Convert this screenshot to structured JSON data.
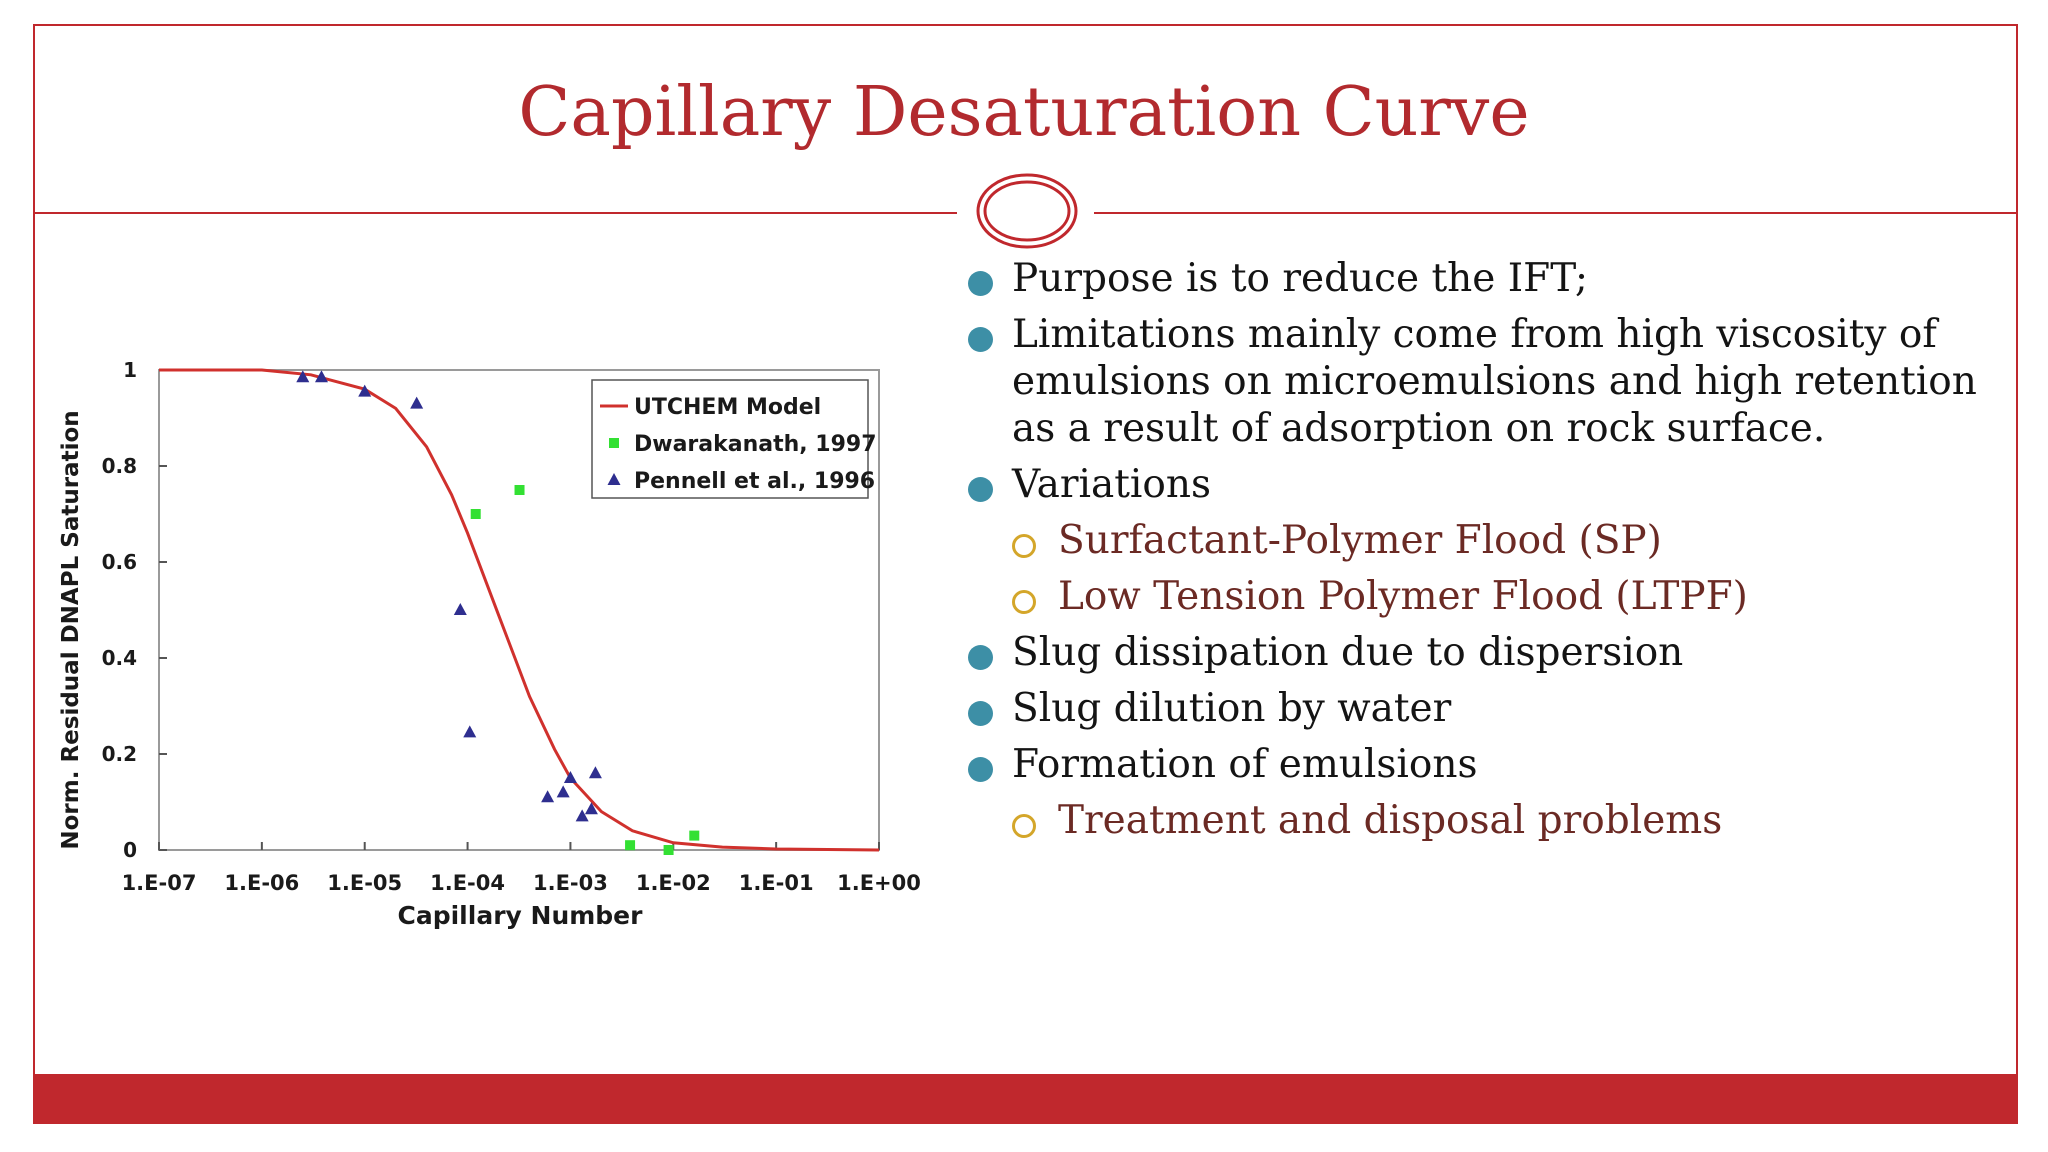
{
  "slide": {
    "title": "Capillary Desaturation Curve",
    "accent_color": "#c0282d",
    "bullet_color": "#3d8fa6",
    "sub_bullet_color": "#d4a62a"
  },
  "bullets": [
    {
      "level": 1,
      "text": "Purpose is to reduce the IFT;"
    },
    {
      "level": 1,
      "text": "Limitations mainly come from high viscosity of emulsions on microemulsions and high retention as a result of adsorption on rock surface."
    },
    {
      "level": 1,
      "text": "Variations"
    },
    {
      "level": 2,
      "text": "Surfactant-Polymer Flood (SP)"
    },
    {
      "level": 2,
      "text": "Low Tension Polymer Flood (LTPF)"
    },
    {
      "level": 1,
      "text": "Slug dissipation due to dispersion"
    },
    {
      "level": 1,
      "text": "Slug dilution by water"
    },
    {
      "level": 1,
      "text": "Formation of emulsions"
    },
    {
      "level": 2,
      "text": "Treatment and disposal problems"
    }
  ],
  "chart_data": {
    "type": "scatter",
    "xlabel": "Capillary Number",
    "ylabel": "Norm. Residual DNAPL Saturation",
    "x_scale": "log",
    "xlim": [
      1e-07,
      1
    ],
    "ylim": [
      0,
      1
    ],
    "x_tick_labels": [
      "1.E-07",
      "1.E-06",
      "1.E-05",
      "1.E-04",
      "1.E-03",
      "1.E-02",
      "1.E-01",
      "1.E+00"
    ],
    "y_tick_labels": [
      "0",
      "0.2",
      "0.4",
      "0.6",
      "0.8",
      "1"
    ],
    "y_ticks": [
      0,
      0.2,
      0.4,
      0.6,
      0.8,
      1
    ],
    "legend_position": "top-right",
    "grid": false,
    "series": [
      {
        "name": "UTCHEM Model",
        "kind": "line",
        "color": "#d0312d",
        "points": [
          [
            1e-07,
            1.0
          ],
          [
            1e-06,
            1.0
          ],
          [
            3e-06,
            0.99
          ],
          [
            1e-05,
            0.96
          ],
          [
            2e-05,
            0.92
          ],
          [
            4e-05,
            0.84
          ],
          [
            7e-05,
            0.74
          ],
          [
            0.0001,
            0.66
          ],
          [
            0.0002,
            0.49
          ],
          [
            0.0004,
            0.32
          ],
          [
            0.0007,
            0.21
          ],
          [
            0.001,
            0.15
          ],
          [
            0.002,
            0.08
          ],
          [
            0.004,
            0.04
          ],
          [
            0.01,
            0.015
          ],
          [
            0.03,
            0.006
          ],
          [
            0.1,
            0.002
          ],
          [
            1.0,
            0.0
          ]
        ]
      },
      {
        "name": "Dwarakanath, 1997",
        "kind": "square",
        "color": "#33e033",
        "points": [
          [
            0.00012,
            0.7
          ],
          [
            0.00032,
            0.75
          ],
          [
            0.0038,
            0.01
          ],
          [
            0.009,
            0.0
          ],
          [
            0.016,
            0.03
          ]
        ]
      },
      {
        "name": "Pennell et al., 1996",
        "kind": "triangle",
        "color": "#2e2e8f",
        "points": [
          [
            2.5e-06,
            0.985
          ],
          [
            3.8e-06,
            0.985
          ],
          [
            1e-05,
            0.955
          ],
          [
            3.2e-05,
            0.93
          ],
          [
            8.5e-05,
            0.5
          ],
          [
            0.000105,
            0.245
          ],
          [
            0.0006,
            0.11
          ],
          [
            0.00085,
            0.12
          ],
          [
            0.001,
            0.15
          ],
          [
            0.0013,
            0.07
          ],
          [
            0.0016,
            0.085
          ],
          [
            0.00175,
            0.16
          ]
        ]
      }
    ]
  }
}
